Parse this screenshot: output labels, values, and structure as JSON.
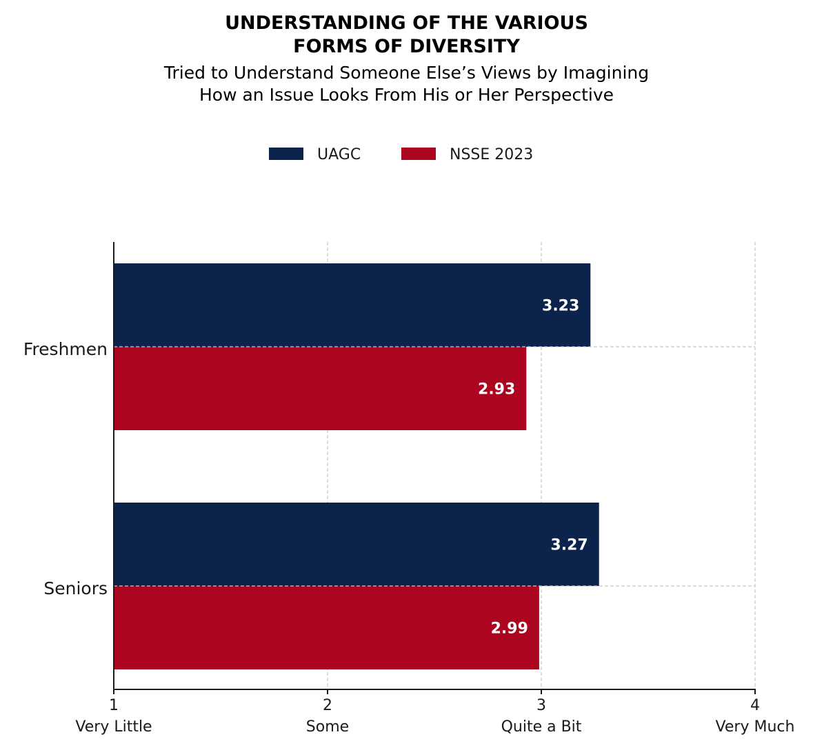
{
  "chart_data": {
    "type": "bar",
    "orientation": "horizontal",
    "title_lines": [
      "UNDERSTANDING OF THE VARIOUS",
      "FORMS OF DIVERSITY"
    ],
    "subtitle_lines": [
      "Tried to Understand Someone Else’s Views by Imagining",
      "How an Issue Looks From His or Her Perspective"
    ],
    "categories": [
      "Freshmen",
      "Seniors"
    ],
    "series": [
      {
        "name": "UAGC",
        "color": "#0c234b",
        "values": [
          3.23,
          3.27
        ]
      },
      {
        "name": "NSSE 2023",
        "color": "#ab0520",
        "values": [
          2.93,
          2.99
        ]
      }
    ],
    "xlim": [
      1,
      4
    ],
    "xticks": [
      {
        "value": 1,
        "label": "1",
        "sublabel": "Very Little"
      },
      {
        "value": 2,
        "label": "2",
        "sublabel": "Some"
      },
      {
        "value": 3,
        "label": "3",
        "sublabel": "Quite a Bit"
      },
      {
        "value": 4,
        "label": "4",
        "sublabel": "Very Much"
      }
    ],
    "grid": true,
    "legend_position": "top-center"
  }
}
